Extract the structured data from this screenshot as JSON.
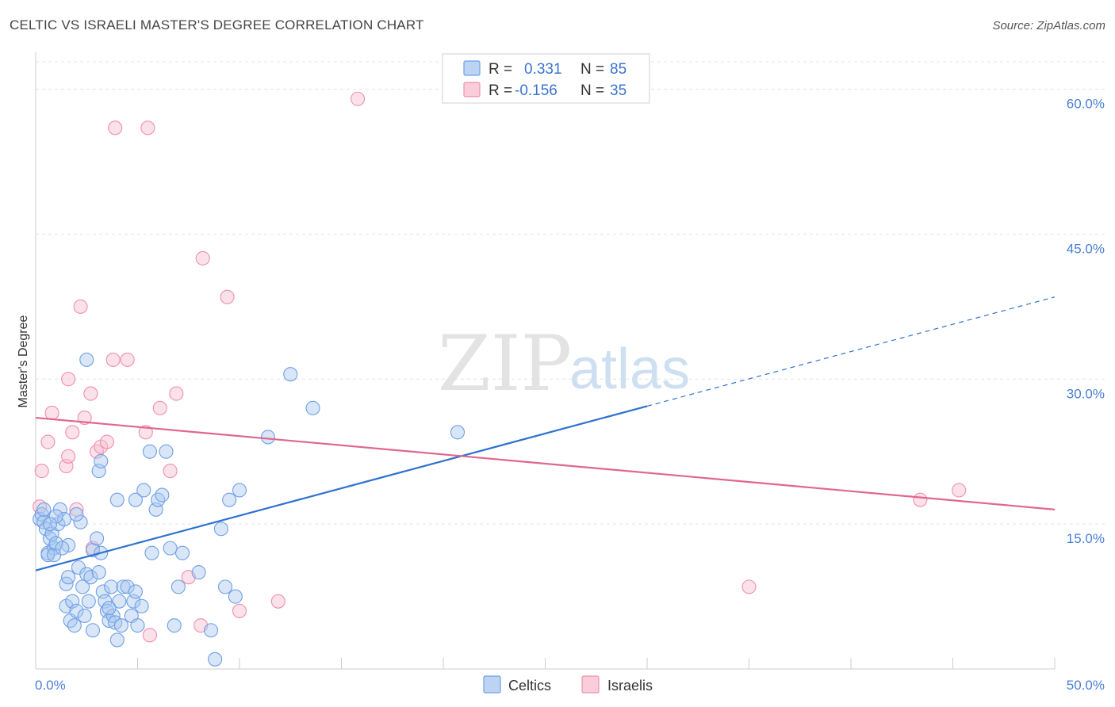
{
  "header": {
    "title": "CELTIC VS ISRAELI MASTER'S DEGREE CORRELATION CHART",
    "source": "Source: ZipAtlas.com"
  },
  "watermark": {
    "zip": "ZIP",
    "atlas": "atlas"
  },
  "legend": {
    "rows": [
      {
        "r_label": "R =",
        "r_value": "0.331",
        "n_label": "N =",
        "n_value": "85",
        "color": "#6fa0e6"
      },
      {
        "r_label": "R =",
        "r_value": "-0.156",
        "n_label": "N =",
        "n_value": "35",
        "color": "#f08fac"
      }
    ]
  },
  "bottom_legend": {
    "celtics": "Celtics",
    "israelis": "Israelis"
  },
  "chart_data": {
    "type": "scatter",
    "title": "CELTIC VS ISRAELI MASTER'S DEGREE CORRELATION CHART",
    "xlabel": "",
    "ylabel": "Master's Degree",
    "xlim": [
      0,
      50
    ],
    "ylim": [
      0,
      63
    ],
    "x_tick_labels": [
      "0.0%",
      "50.0%"
    ],
    "y_ticks": [
      15,
      30,
      45,
      60
    ],
    "y_tick_labels": [
      "15.0%",
      "30.0%",
      "45.0%",
      "60.0%"
    ],
    "grid": true,
    "colors": {
      "celtics": "#6fa0e6",
      "celtics_line": "#2f72d0",
      "israelis": "#f08fac",
      "israelis_line": "#e06690"
    },
    "series": [
      {
        "name": "Celtics",
        "points": [
          [
            0.2,
            15.5
          ],
          [
            0.3,
            16.0
          ],
          [
            0.4,
            15.2
          ],
          [
            0.5,
            14.5
          ],
          [
            0.4,
            16.5
          ],
          [
            0.6,
            12.0
          ],
          [
            0.7,
            13.5
          ],
          [
            0.8,
            14.0
          ],
          [
            0.9,
            12.5
          ],
          [
            0.6,
            11.8
          ],
          [
            0.9,
            11.8
          ],
          [
            1.0,
            13.0
          ],
          [
            1.2,
            16.5
          ],
          [
            1.1,
            15.0
          ],
          [
            1.4,
            15.5
          ],
          [
            1.6,
            12.8
          ],
          [
            1.5,
            8.8
          ],
          [
            1.6,
            9.5
          ],
          [
            1.5,
            6.5
          ],
          [
            1.8,
            7.0
          ],
          [
            1.7,
            5.0
          ],
          [
            1.9,
            4.5
          ],
          [
            2.0,
            6.0
          ],
          [
            2.1,
            10.5
          ],
          [
            2.3,
            8.5
          ],
          [
            2.5,
            9.8
          ],
          [
            2.6,
            7.0
          ],
          [
            2.7,
            9.5
          ],
          [
            2.8,
            4.0
          ],
          [
            2.2,
            15.2
          ],
          [
            2.0,
            16.0
          ],
          [
            2.8,
            12.3
          ],
          [
            3.0,
            13.5
          ],
          [
            3.1,
            10.0
          ],
          [
            3.2,
            12.0
          ],
          [
            3.3,
            8.0
          ],
          [
            3.4,
            7.0
          ],
          [
            3.5,
            6.0
          ],
          [
            3.6,
            5.0
          ],
          [
            3.7,
            8.5
          ],
          [
            3.8,
            5.5
          ],
          [
            3.9,
            4.8
          ],
          [
            4.0,
            3.0
          ],
          [
            4.1,
            7.0
          ],
          [
            4.2,
            4.5
          ],
          [
            4.3,
            8.5
          ],
          [
            4.5,
            8.5
          ],
          [
            4.7,
            5.5
          ],
          [
            4.8,
            7.0
          ],
          [
            4.9,
            8.0
          ],
          [
            5.0,
            4.5
          ],
          [
            5.2,
            6.5
          ],
          [
            3.1,
            20.5
          ],
          [
            3.2,
            21.5
          ],
          [
            4.0,
            17.5
          ],
          [
            4.9,
            17.5
          ],
          [
            5.3,
            18.5
          ],
          [
            5.6,
            22.5
          ],
          [
            5.7,
            12.0
          ],
          [
            5.9,
            16.5
          ],
          [
            6.0,
            17.5
          ],
          [
            6.2,
            18.0
          ],
          [
            6.4,
            22.5
          ],
          [
            6.6,
            12.5
          ],
          [
            6.8,
            4.5
          ],
          [
            7.0,
            8.5
          ],
          [
            7.2,
            12.0
          ],
          [
            8.0,
            10.0
          ],
          [
            8.6,
            4.0
          ],
          [
            9.1,
            14.5
          ],
          [
            9.5,
            17.5
          ],
          [
            9.8,
            7.5
          ],
          [
            10.0,
            18.5
          ],
          [
            9.3,
            8.5
          ],
          [
            8.8,
            1.0
          ],
          [
            11.4,
            24.0
          ],
          [
            12.5,
            30.5
          ],
          [
            13.6,
            27.0
          ],
          [
            20.7,
            24.5
          ],
          [
            2.5,
            32.0
          ],
          [
            1.0,
            15.8
          ],
          [
            0.7,
            15.0
          ],
          [
            1.3,
            12.5
          ],
          [
            2.4,
            5.5
          ],
          [
            3.6,
            6.3
          ]
        ]
      },
      {
        "name": "Israelis",
        "points": [
          [
            0.2,
            16.8
          ],
          [
            0.3,
            20.5
          ],
          [
            0.6,
            23.5
          ],
          [
            0.8,
            26.5
          ],
          [
            1.5,
            21.0
          ],
          [
            1.6,
            22.0
          ],
          [
            1.6,
            30.0
          ],
          [
            1.8,
            24.5
          ],
          [
            2.0,
            16.5
          ],
          [
            2.2,
            37.5
          ],
          [
            2.4,
            26.0
          ],
          [
            2.7,
            28.5
          ],
          [
            2.8,
            12.5
          ],
          [
            3.0,
            22.5
          ],
          [
            3.2,
            23.0
          ],
          [
            3.5,
            23.5
          ],
          [
            3.8,
            32.0
          ],
          [
            3.9,
            56.0
          ],
          [
            4.5,
            32.0
          ],
          [
            5.4,
            24.5
          ],
          [
            5.6,
            3.5
          ],
          [
            5.5,
            56.0
          ],
          [
            6.1,
            27.0
          ],
          [
            6.6,
            20.5
          ],
          [
            6.9,
            28.5
          ],
          [
            7.5,
            9.5
          ],
          [
            8.1,
            4.5
          ],
          [
            8.2,
            42.5
          ],
          [
            9.4,
            38.5
          ],
          [
            10.0,
            6.0
          ],
          [
            11.9,
            7.0
          ],
          [
            15.8,
            59.0
          ],
          [
            35.0,
            8.5
          ],
          [
            43.4,
            17.5
          ],
          [
            45.3,
            18.5
          ]
        ]
      }
    ],
    "trendlines": [
      {
        "name": "Celtics",
        "x0": 0,
        "y0": 10.2,
        "x1": 30,
        "y1": 27.2,
        "dashed_to_x": 50,
        "dashed_to_y": 38.5
      },
      {
        "name": "Israelis",
        "x0": 0,
        "y0": 26.0,
        "x1": 50,
        "y1": 16.5
      }
    ]
  }
}
